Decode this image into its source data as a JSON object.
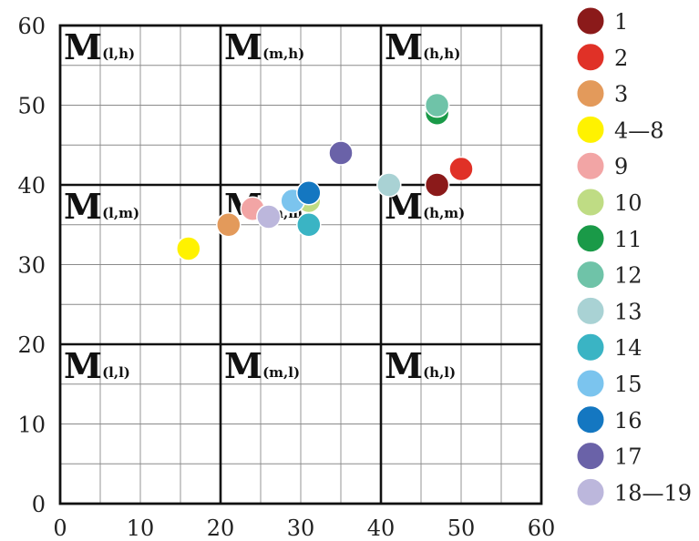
{
  "chart_data": {
    "type": "scatter",
    "title": "",
    "xlabel": "",
    "ylabel": "",
    "xlim": [
      0,
      60
    ],
    "ylim": [
      0,
      60
    ],
    "x_ticks": [
      "0",
      "10",
      "20",
      "30",
      "40",
      "50",
      "60"
    ],
    "y_ticks": [
      "0",
      "10",
      "20",
      "30",
      "40",
      "50",
      "60"
    ],
    "grid": true,
    "legend_position": "right",
    "zones": [
      {
        "main": "M",
        "sub": "(l,h)",
        "x": 0,
        "y": 60
      },
      {
        "main": "M",
        "sub": "(m,h)",
        "x": 20,
        "y": 60
      },
      {
        "main": "M",
        "sub": "(h,h)",
        "x": 40,
        "y": 60
      },
      {
        "main": "M",
        "sub": "(l,m)",
        "x": 0,
        "y": 40
      },
      {
        "main": "M",
        "sub": "(m,m)",
        "x": 20,
        "y": 40
      },
      {
        "main": "M",
        "sub": "(h,m)",
        "x": 40,
        "y": 40
      },
      {
        "main": "M",
        "sub": "(l,l)",
        "x": 0,
        "y": 20
      },
      {
        "main": "M",
        "sub": "(m,l)",
        "x": 20,
        "y": 20
      },
      {
        "main": "M",
        "sub": "(h,l)",
        "x": 40,
        "y": 20
      }
    ],
    "series": [
      {
        "name": "1",
        "color": "#8b1a1a",
        "x": 47,
        "y": 40
      },
      {
        "name": "2",
        "color": "#e03127",
        "x": 50,
        "y": 42
      },
      {
        "name": "3",
        "color": "#e39a5b",
        "x": 21,
        "y": 35
      },
      {
        "name": "4—8",
        "color": "#fff200",
        "x": 16,
        "y": 32
      },
      {
        "name": "9",
        "color": "#f2a5a5",
        "x": 24,
        "y": 37
      },
      {
        "name": "10",
        "color": "#bfdc84",
        "x": 31,
        "y": 38
      },
      {
        "name": "11",
        "color": "#1a9a48",
        "x": 47,
        "y": 49
      },
      {
        "name": "12",
        "color": "#6fc3a8",
        "x": 47,
        "y": 50
      },
      {
        "name": "13",
        "color": "#a9d2d4",
        "x": 41,
        "y": 40
      },
      {
        "name": "14",
        "color": "#3ab4c4",
        "x": 31,
        "y": 35
      },
      {
        "name": "15",
        "color": "#7bc4ee",
        "x": 29,
        "y": 38
      },
      {
        "name": "16",
        "color": "#1477c1",
        "x": 31,
        "y": 39
      },
      {
        "name": "17",
        "color": "#6a62a8",
        "x": 35,
        "y": 44
      },
      {
        "name": "18—19",
        "color": "#bcb7dc",
        "x": 26,
        "y": 36
      }
    ]
  }
}
